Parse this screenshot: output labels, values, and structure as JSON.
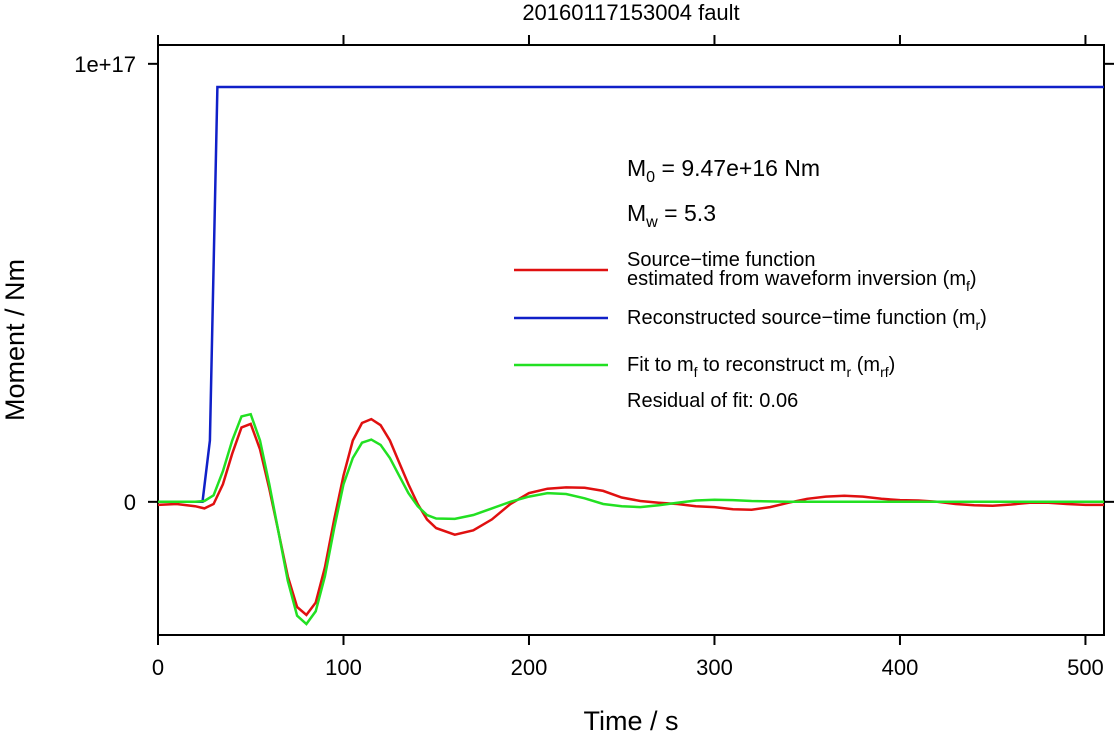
{
  "chart_data": {
    "type": "line",
    "title": "20160117153004 fault",
    "x_label": "Time / s",
    "y_label": "Moment / Nm",
    "xlim": [
      0,
      510
    ],
    "xticks": [
      0,
      100,
      200,
      300,
      400,
      500
    ],
    "ylim": [
      -3.04e+16,
      1.043e+17
    ],
    "yticks": [
      0,
      {
        "value": 1e+17,
        "label": "1e+17"
      }
    ],
    "grid": false,
    "legend": "right",
    "annotations": [
      [
        "M",
        {
          "sub": "0"
        },
        " = 9.47e+16 Nm"
      ],
      [
        "M",
        {
          "sub": "w"
        },
        " = 5.3"
      ],
      [
        "Residual of fit: 0.06"
      ]
    ],
    "series": [
      {
        "name": [
          [
            "Source−time function"
          ],
          [
            "estimated from waveform inversion (m",
            {
              "sub": "f"
            },
            ")"
          ]
        ],
        "color": "#e01010",
        "x": [
          0,
          10,
          20,
          25,
          30,
          35,
          40,
          45,
          50,
          55,
          60,
          65,
          70,
          75,
          80,
          85,
          90,
          95,
          100,
          105,
          110,
          115,
          120,
          125,
          130,
          135,
          140,
          145,
          150,
          160,
          170,
          180,
          190,
          200,
          210,
          220,
          230,
          240,
          250,
          260,
          270,
          280,
          290,
          300,
          310,
          320,
          330,
          340,
          350,
          360,
          370,
          380,
          390,
          400,
          410,
          420,
          430,
          440,
          450,
          460,
          470,
          480,
          490,
          500,
          510
        ],
        "values": [
          -700000000000000.0,
          -500000000000000.0,
          -1000000000000000.0,
          -1500000000000000.0,
          -500000000000000.0,
          4000000000000000.0,
          1.1e+16,
          1.7e+16,
          1.78e+16,
          1.2e+16,
          3000000000000000.0,
          -7000000000000000.0,
          -1.7e+16,
          -2.4e+16,
          -2.58e+16,
          -2.3e+16,
          -1.5e+16,
          -4000000000000000.0,
          6000000000000000.0,
          1.4e+16,
          1.8e+16,
          1.89e+16,
          1.75e+16,
          1.4e+16,
          9000000000000000.0,
          4000000000000000.0,
          -500000000000000.0,
          -4000000000000000.0,
          -6000000000000000.0,
          -7500000000000000.0,
          -6500000000000000.0,
          -4000000000000000.0,
          -500000000000000.0,
          2000000000000000.0,
          3000000000000000.0,
          3300000000000000.0,
          3200000000000000.0,
          2500000000000000.0,
          1000000000000000.0,
          200000000000000.0,
          -200000000000000.0,
          -500000000000000.0,
          -1000000000000000.0,
          -1200000000000000.0,
          -1700000000000000.0,
          -1800000000000000.0,
          -1200000000000000.0,
          -200000000000000.0,
          700000000000000.0,
          1200000000000000.0,
          1400000000000000.0,
          1200000000000000.0,
          700000000000000.0,
          400000000000000.0,
          300000000000000.0,
          0,
          -500000000000000.0,
          -800000000000000.0,
          -900000000000000.0,
          -600000000000000.0,
          -200000000000000.0,
          -200000000000000.0,
          -500000000000000.0,
          -700000000000000.0,
          -700000000000000.0
        ]
      },
      {
        "name": [
          [
            "Reconstructed source−time function (m",
            {
              "sub": "r"
            },
            ")"
          ]
        ],
        "color": "#1020c8",
        "x": [
          0,
          24,
          28,
          32,
          510
        ],
        "values": [
          0,
          0,
          1.4e+16,
          9.47e+16,
          9.47e+16
        ]
      },
      {
        "name": [
          [
            "Fit to m",
            {
              "sub": "f"
            },
            " to reconstruct m",
            {
              "sub": "r"
            },
            " (m",
            {
              "sub": "rf"
            },
            ")"
          ]
        ],
        "color": "#22e022",
        "x": [
          0,
          10,
          20,
          25,
          30,
          35,
          40,
          45,
          50,
          55,
          60,
          65,
          70,
          75,
          80,
          85,
          90,
          95,
          100,
          105,
          110,
          115,
          120,
          125,
          130,
          135,
          140,
          145,
          150,
          160,
          170,
          180,
          190,
          200,
          210,
          220,
          230,
          240,
          250,
          260,
          270,
          280,
          290,
          300,
          310,
          320,
          340,
          400,
          510
        ],
        "values": [
          0,
          0,
          0,
          200000000000000.0,
          1500000000000000.0,
          7000000000000000.0,
          1.4e+16,
          1.95e+16,
          2e+16,
          1.4e+16,
          4000000000000000.0,
          -7000000000000000.0,
          -1.8e+16,
          -2.6e+16,
          -2.79e+16,
          -2.5e+16,
          -1.7e+16,
          -6000000000000000.0,
          4000000000000000.0,
          1e+16,
          1.35e+16,
          1.42e+16,
          1.3e+16,
          1e+16,
          6000000000000000.0,
          2000000000000000.0,
          -1000000000000000.0,
          -3000000000000000.0,
          -3800000000000000.0,
          -3900000000000000.0,
          -3000000000000000.0,
          -1500000000000000.0,
          0,
          1200000000000000.0,
          2000000000000000.0,
          1800000000000000.0,
          800000000000000.0,
          -500000000000000.0,
          -1000000000000000.0,
          -1200000000000000.0,
          -800000000000000.0,
          -200000000000000.0,
          300000000000000.0,
          500000000000000.0,
          400000000000000.0,
          200000000000000.0,
          0,
          0,
          0
        ]
      }
    ]
  }
}
